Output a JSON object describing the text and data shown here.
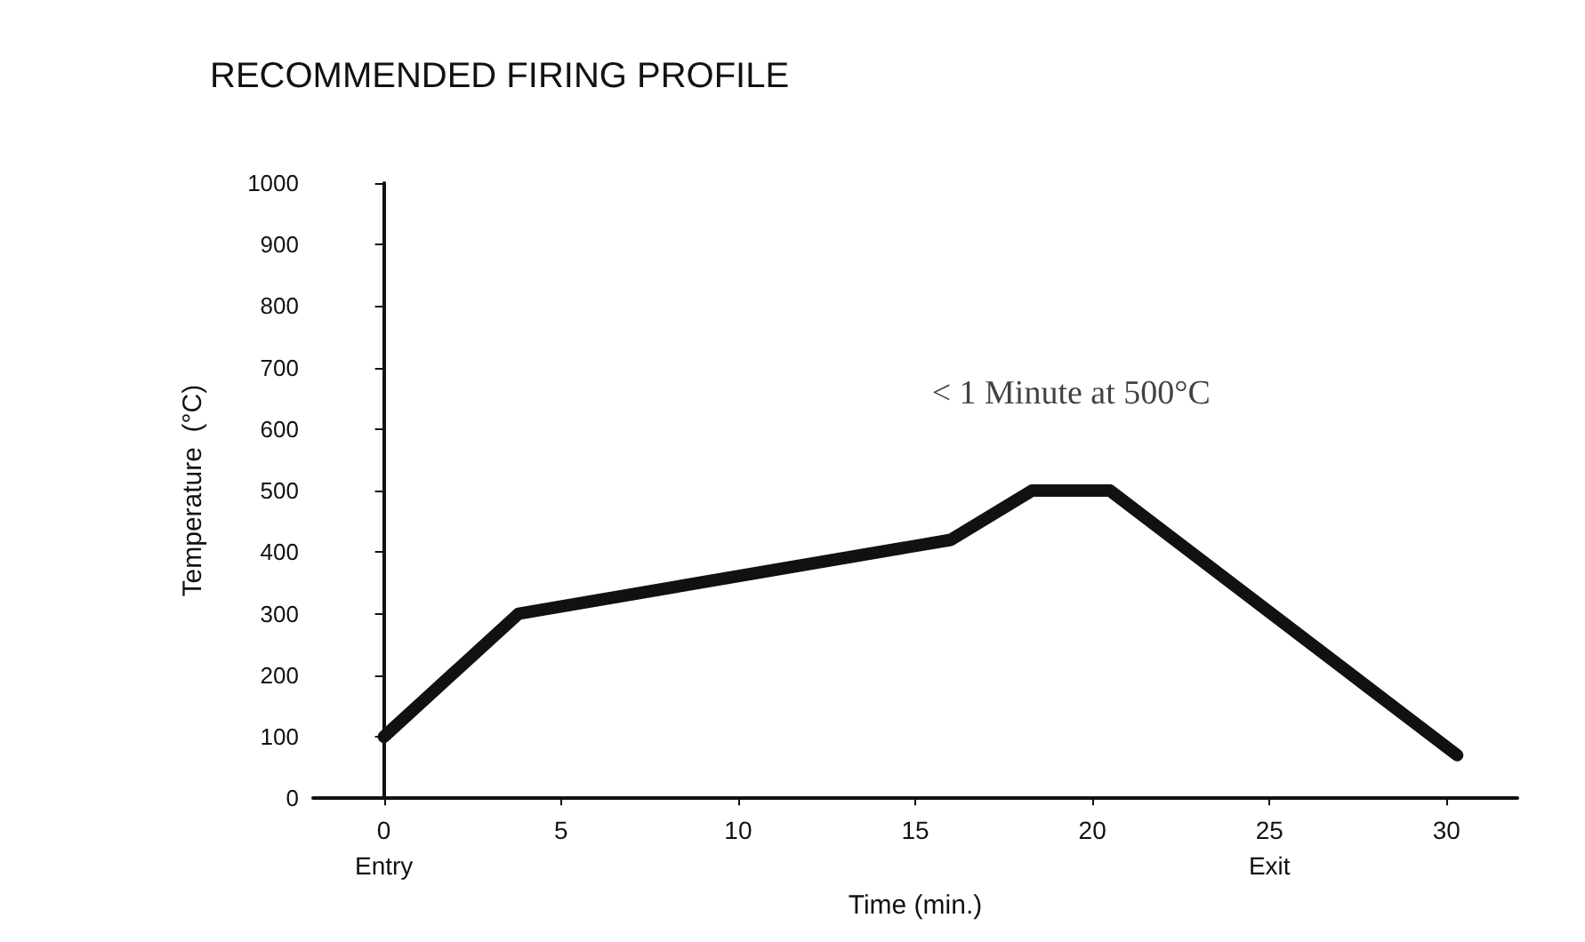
{
  "chart_data": {
    "type": "line",
    "title": "RECOMMENDED FIRING PROFILE",
    "xlabel": "Time (min.)",
    "ylabel": "Temperature  (°C)",
    "x": [
      0,
      3.8,
      16,
      18.3,
      20.5,
      30.3
    ],
    "series": [
      {
        "color": "#111111",
        "values": [
          100,
          300,
          420,
          500,
          500,
          70
        ]
      }
    ],
    "xlim": [
      -2,
      32
    ],
    "xticks": [
      {
        "value": 0,
        "label": "0\nEntry"
      },
      5,
      10,
      15,
      20,
      {
        "value": 25,
        "label": "25\nExit"
      },
      30
    ],
    "ylim": [
      0,
      1000
    ],
    "yticks": [
      0,
      100,
      200,
      300,
      400,
      500,
      600,
      700,
      800,
      900,
      1000
    ],
    "annotations": [
      {
        "text": "< 1 Minute at 500°C",
        "x": 19.4,
        "y": 500
      }
    ],
    "marker": "none",
    "line_style": "solid"
  }
}
